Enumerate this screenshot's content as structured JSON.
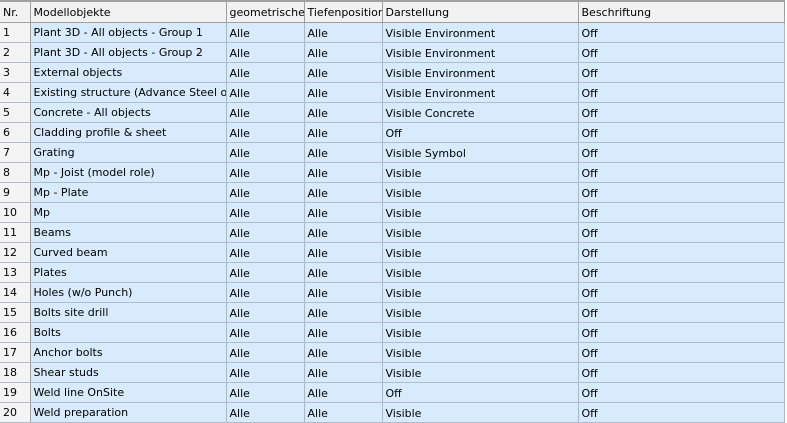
{
  "columns": [
    "Nr.",
    "Modellobjekte",
    "geometrische",
    "Tiefenposition",
    "Darstellung",
    "Beschriftung"
  ],
  "rows": [
    [
      "1",
      "Plant 3D - All objects - Group 1",
      "Alle",
      "Alle",
      "Visible Environment",
      "Off"
    ],
    [
      "2",
      "Plant 3D - All objects - Group 2",
      "Alle",
      "Alle",
      "Visible Environment",
      "Off"
    ],
    [
      "3",
      "External objects",
      "Alle",
      "Alle",
      "Visible Environment",
      "Off"
    ],
    [
      "4",
      "Existing structure (Advance Steel objects)",
      "Alle",
      "Alle",
      "Visible Environment",
      "Off"
    ],
    [
      "5",
      "Concrete - All objects",
      "Alle",
      "Alle",
      "Visible Concrete",
      "Off"
    ],
    [
      "6",
      "Cladding profile & sheet",
      "Alle",
      "Alle",
      "Off",
      "Off"
    ],
    [
      "7",
      "Grating",
      "Alle",
      "Alle",
      "Visible Symbol",
      "Off"
    ],
    [
      "8",
      "Mp - Joist (model role)",
      "Alle",
      "Alle",
      "Visible",
      "Off"
    ],
    [
      "9",
      "Mp - Plate",
      "Alle",
      "Alle",
      "Visible",
      "Off"
    ],
    [
      "10",
      "Mp",
      "Alle",
      "Alle",
      "Visible",
      "Off"
    ],
    [
      "11",
      "Beams",
      "Alle",
      "Alle",
      "Visible",
      "Off"
    ],
    [
      "12",
      "Curved beam",
      "Alle",
      "Alle",
      "Visible",
      "Off"
    ],
    [
      "13",
      "Plates",
      "Alle",
      "Alle",
      "Visible",
      "Off"
    ],
    [
      "14",
      "Holes (w/o Punch)",
      "Alle",
      "Alle",
      "Visible",
      "Off"
    ],
    [
      "15",
      "Bolts site drill",
      "Alle",
      "Alle",
      "Visible",
      "Off"
    ],
    [
      "16",
      "Bolts",
      "Alle",
      "Alle",
      "Visible",
      "Off"
    ],
    [
      "17",
      "Anchor bolts",
      "Alle",
      "Alle",
      "Visible",
      "Off"
    ],
    [
      "18",
      "Shear studs",
      "Alle",
      "Alle",
      "Visible",
      "Off"
    ],
    [
      "19",
      "Weld line OnSite",
      "Alle",
      "Alle",
      "Off",
      "Off"
    ],
    [
      "20",
      "Weld preparation",
      "Alle",
      "Alle",
      "Visible",
      "Off"
    ]
  ]
}
